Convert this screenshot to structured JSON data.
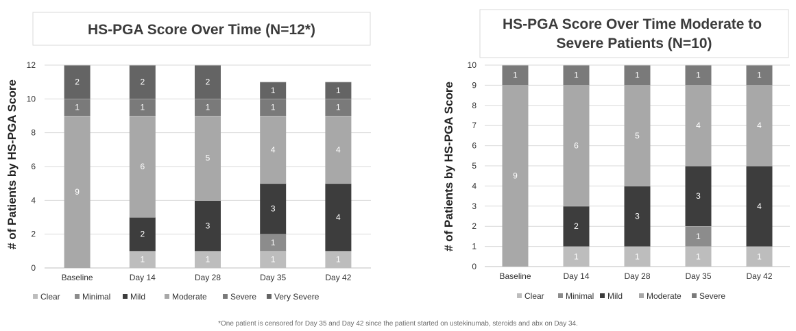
{
  "footnote": "*One patient is censored for Day 35 and Day 42 since the patient started on ustekinumab, steroids and abx on Day 34.",
  "colors": {
    "Clear": "#bdbdbd",
    "Minimal": "#8c8c8c",
    "Mild": "#3d3d3d",
    "Moderate": "#a8a8a8",
    "Severe": "#7a7a7a",
    "Very Severe": "#646464"
  },
  "chart_data": [
    {
      "type": "bar",
      "stacked": true,
      "title": "HS-PGA Score Over Time (N=12*)",
      "ylabel": "# of Patients by HS-PGA Score",
      "xlabel": "",
      "categories": [
        "Baseline",
        "Day 14",
        "Day 28",
        "Day 35",
        "Day 42"
      ],
      "ylim": [
        0,
        12
      ],
      "yticks": [
        0,
        2,
        4,
        6,
        8,
        10,
        12
      ],
      "grid": true,
      "legend_position": "bottom",
      "series": [
        {
          "name": "Clear",
          "values": [
            0,
            1,
            1,
            1,
            1
          ]
        },
        {
          "name": "Minimal",
          "values": [
            0,
            0,
            0,
            1,
            0
          ]
        },
        {
          "name": "Mild",
          "values": [
            0,
            2,
            3,
            3,
            4
          ]
        },
        {
          "name": "Moderate",
          "values": [
            9,
            6,
            5,
            4,
            4
          ]
        },
        {
          "name": "Severe",
          "values": [
            1,
            1,
            1,
            1,
            1
          ]
        },
        {
          "name": "Very Severe",
          "values": [
            2,
            2,
            2,
            1,
            1
          ]
        }
      ]
    },
    {
      "type": "bar",
      "stacked": true,
      "title": "HS-PGA Score Over Time Moderate to Severe Patients (N=10)",
      "ylabel": "# of Patients  by HS-PGA Score",
      "xlabel": "",
      "categories": [
        "Baseline",
        "Day 14",
        "Day 28",
        "Day 35",
        "Day 42"
      ],
      "ylim": [
        0,
        10
      ],
      "yticks": [
        0,
        1,
        2,
        3,
        4,
        5,
        6,
        7,
        8,
        9,
        10
      ],
      "grid": true,
      "legend_position": "bottom",
      "series": [
        {
          "name": "Clear",
          "values": [
            0,
            1,
            1,
            1,
            1
          ]
        },
        {
          "name": "Minimal",
          "values": [
            0,
            0,
            0,
            1,
            0
          ]
        },
        {
          "name": "Mild",
          "values": [
            0,
            2,
            3,
            3,
            4
          ]
        },
        {
          "name": "Moderate",
          "values": [
            9,
            6,
            5,
            4,
            4
          ]
        },
        {
          "name": "Severe",
          "values": [
            1,
            1,
            1,
            1,
            1
          ]
        }
      ]
    }
  ]
}
